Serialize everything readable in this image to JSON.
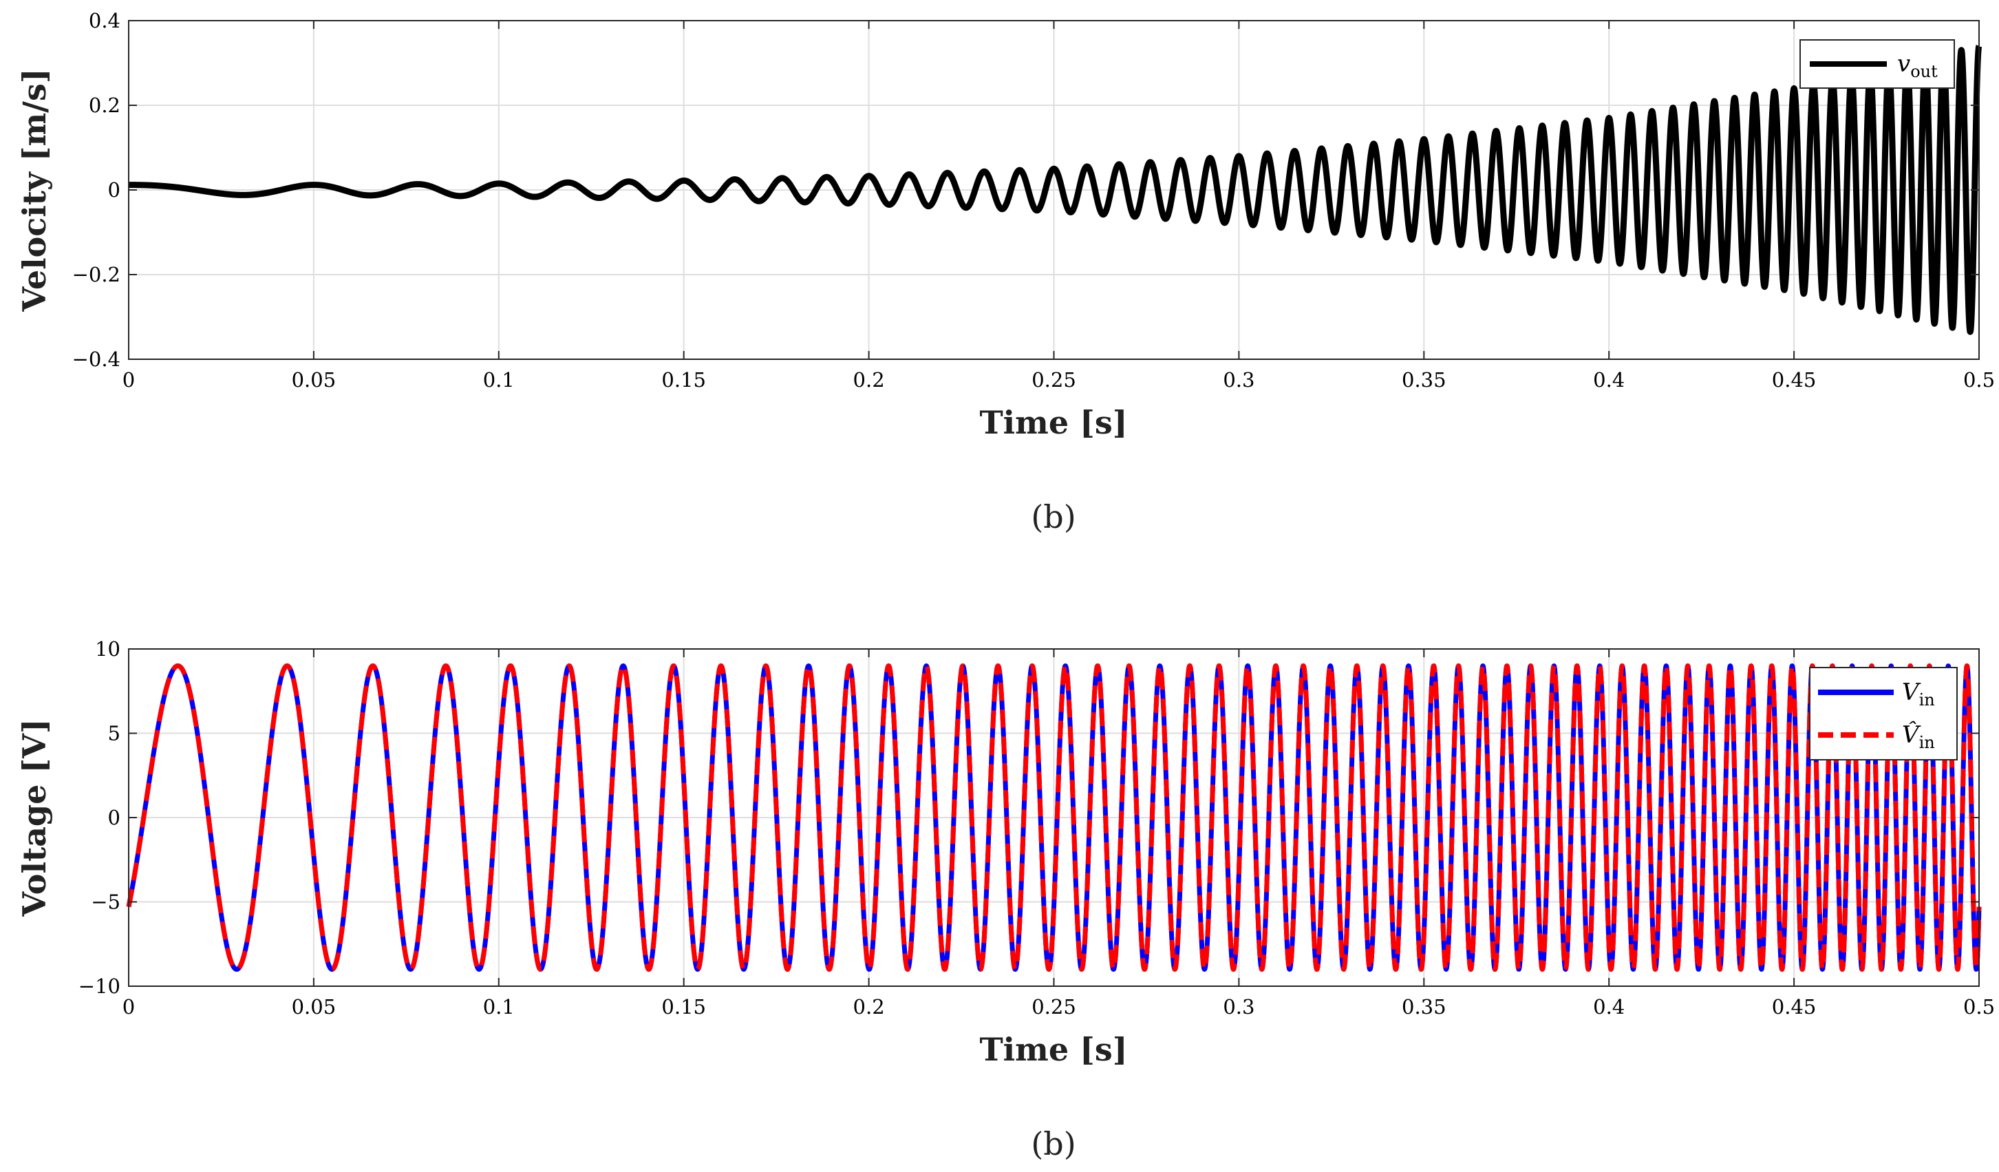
{
  "chart_data": [
    {
      "type": "line",
      "id": "velocity",
      "title": "",
      "xlabel": "Time [s]",
      "ylabel": "Velocity [m/s]",
      "caption": "(b)",
      "xlim": [
        0,
        0.5
      ],
      "ylim": [
        -0.4,
        0.4
      ],
      "x_ticks": [
        0,
        0.05,
        0.1,
        0.15,
        0.2,
        0.25,
        0.3,
        0.35,
        0.4,
        0.45,
        0.5
      ],
      "x_tick_labels": [
        "0",
        "0.05",
        "0.1",
        "0.15",
        "0.2",
        "0.25",
        "0.3",
        "0.35",
        "0.4",
        "0.45",
        "0.5"
      ],
      "y_ticks": [
        -0.4,
        -0.2,
        0,
        0.2,
        0.4
      ],
      "y_tick_labels": [
        "−0.4",
        "−0.2",
        "0",
        "0.2",
        "0.4"
      ],
      "grid": true,
      "legend_position": "top-right",
      "series": [
        {
          "name": "v_out",
          "legend_main": "v",
          "legend_sub": "out",
          "color": "#000000",
          "style": "solid",
          "signal": {
            "kind": "linear-chirp",
            "t_start": 0,
            "t_end": 0.5,
            "f0_hz": 10,
            "f1_hz": 210,
            "phase_deg": 90,
            "amplitude_envelope": [
              [
                0,
                0.012
              ],
              [
                0.05,
                0.012
              ],
              [
                0.1,
                0.015
              ],
              [
                0.15,
                0.022
              ],
              [
                0.2,
                0.033
              ],
              [
                0.25,
                0.05
              ],
              [
                0.3,
                0.08
              ],
              [
                0.35,
                0.12
              ],
              [
                0.4,
                0.17
              ],
              [
                0.45,
                0.24
              ],
              [
                0.5,
                0.34
              ]
            ]
          }
        }
      ]
    },
    {
      "type": "line",
      "id": "voltage",
      "title": "",
      "xlabel": "Time [s]",
      "ylabel": "Voltage [V]",
      "caption": "(b)",
      "xlim": [
        0,
        0.5
      ],
      "ylim": [
        -10,
        10
      ],
      "x_ticks": [
        0,
        0.05,
        0.1,
        0.15,
        0.2,
        0.25,
        0.3,
        0.35,
        0.4,
        0.45,
        0.5
      ],
      "x_tick_labels": [
        "0",
        "0.05",
        "0.1",
        "0.15",
        "0.2",
        "0.25",
        "0.3",
        "0.35",
        "0.4",
        "0.45",
        "0.5"
      ],
      "y_ticks": [
        -10,
        -5,
        0,
        5,
        10
      ],
      "y_tick_labels": [
        "−10",
        "−5",
        "0",
        "5",
        "10"
      ],
      "grid": true,
      "legend_position": "top-right",
      "series": [
        {
          "name": "V_in",
          "legend_main": "V",
          "legend_sub": "in",
          "color": "#0000ff",
          "style": "solid",
          "signal": {
            "kind": "linear-chirp",
            "t_start": 0,
            "t_end": 0.5,
            "f0_hz": 24,
            "f1_hz": 200,
            "phase_deg": -36,
            "amplitude": 9
          }
        },
        {
          "name": "V_in_hat",
          "legend_main": "V̂",
          "legend_sub": "in",
          "color": "#ff0000",
          "style": "dashed",
          "signal": {
            "kind": "linear-chirp",
            "t_start": 0,
            "t_end": 0.5,
            "f0_hz": 24,
            "f1_hz": 200,
            "phase_deg": -36,
            "amplitude": 9
          }
        }
      ]
    }
  ]
}
